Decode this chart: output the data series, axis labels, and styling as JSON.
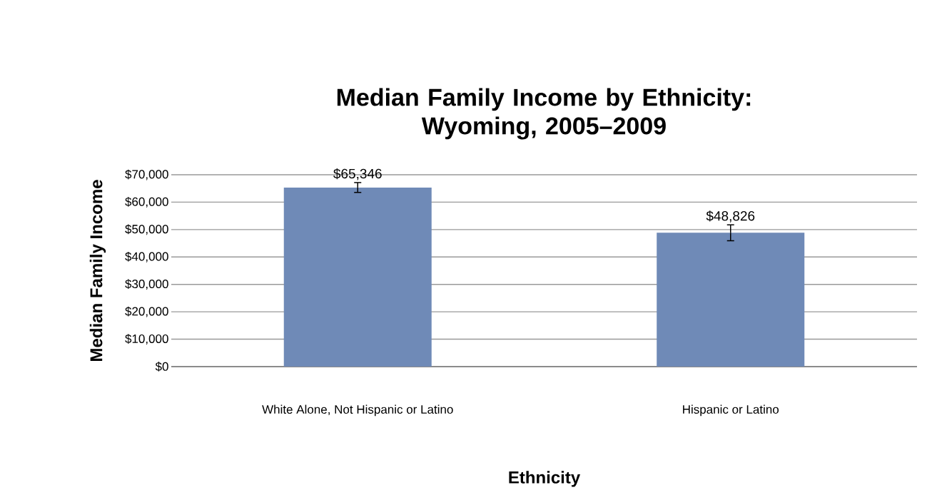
{
  "chart_data": {
    "type": "bar",
    "title": "Median Family Income by Ethnicity:\nWyoming, 2005–2009",
    "xlabel": "Ethnicity",
    "ylabel": "Median Family Income",
    "categories": [
      "White Alone, Not Hispanic or Latino",
      "Hispanic or Latino"
    ],
    "values": [
      65346,
      48826
    ],
    "errors": [
      1800,
      2900
    ],
    "color": "#6f8ab7",
    "ylim": [
      0,
      70000
    ],
    "yticks": [
      {
        "value": 0,
        "label": "$0"
      },
      {
        "value": 10000,
        "label": "$10,000"
      },
      {
        "value": 20000,
        "label": "$20,000"
      },
      {
        "value": 30000,
        "label": "$30,000"
      },
      {
        "value": 40000,
        "label": "$40,000"
      },
      {
        "value": 50000,
        "label": "$50,000"
      },
      {
        "value": 60000,
        "label": "$60,000"
      },
      {
        "value": 70000,
        "label": "$70,000"
      }
    ],
    "value_labels": [
      "$65,346",
      "$48,826"
    ],
    "grid": "y"
  }
}
